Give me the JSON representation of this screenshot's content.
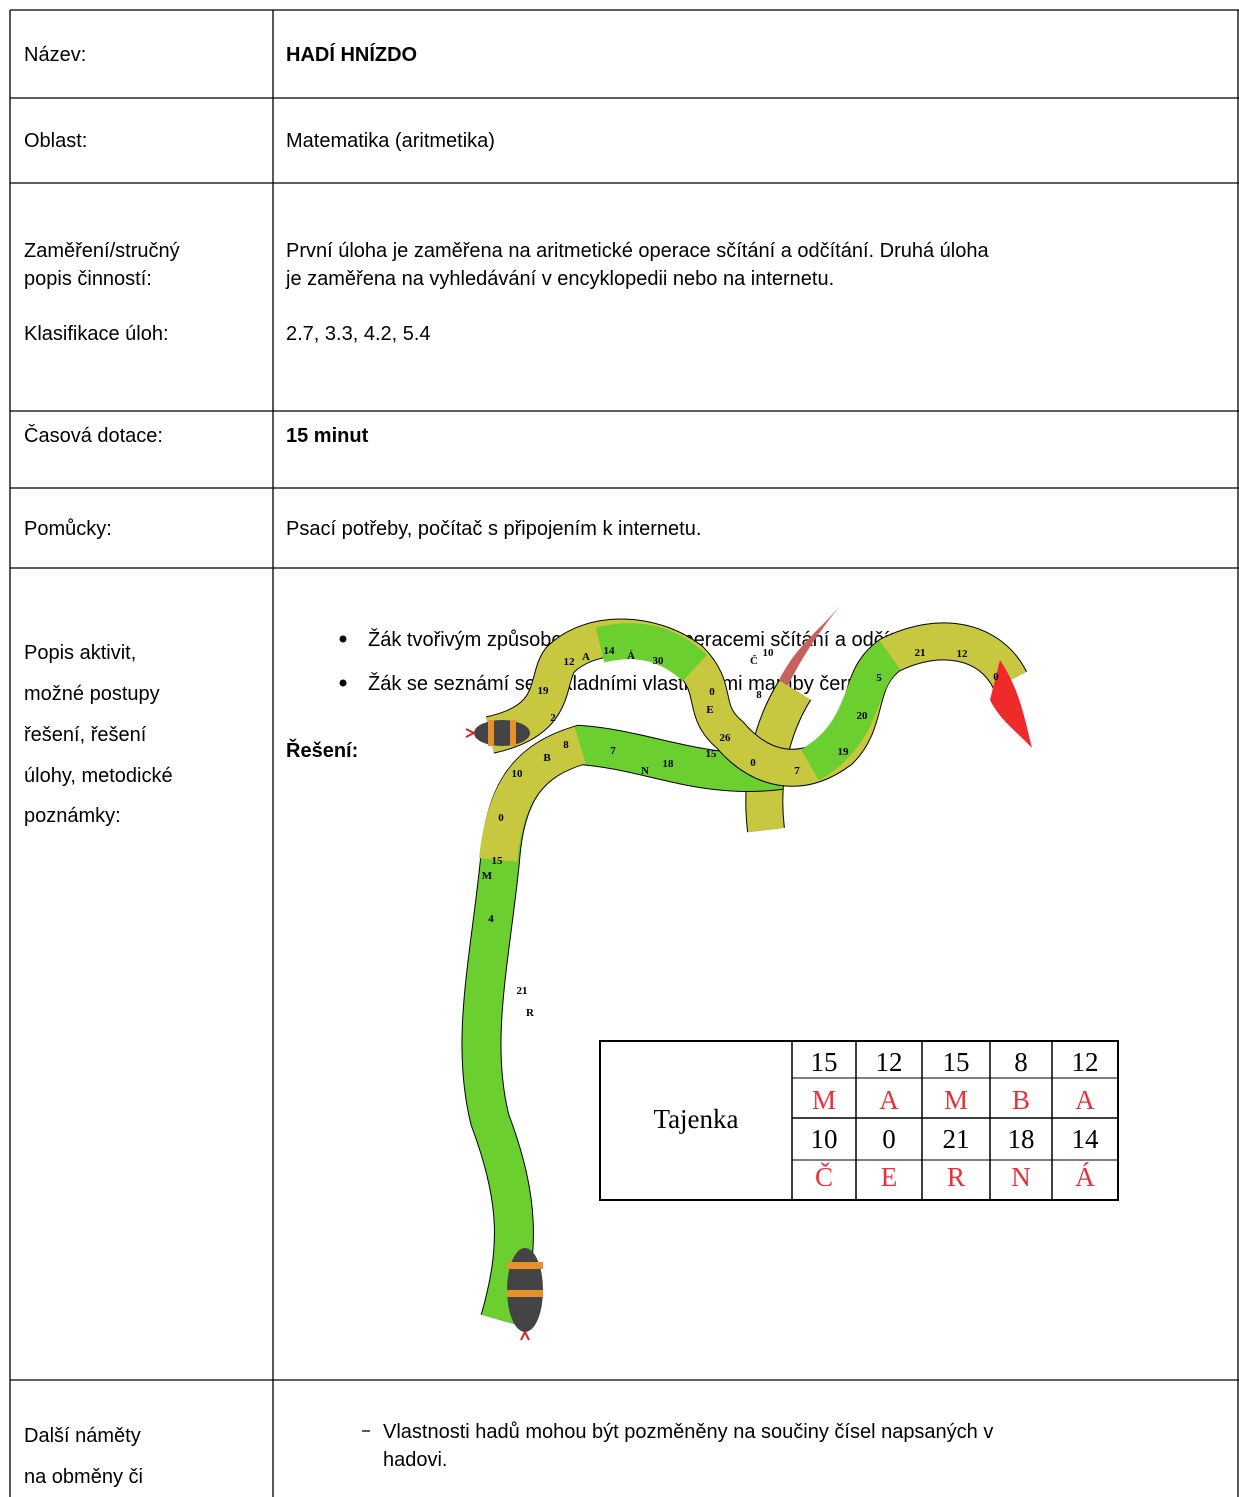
{
  "table": {
    "rows": [
      {
        "label": "Název:",
        "value": "HADÍ HNÍZDO"
      },
      {
        "label": "Oblast:",
        "value": "Matematika (aritmetika)"
      },
      {
        "label_lines": [
          "Zaměření/stručný",
          "popis činností:"
        ],
        "text_lines": [
          "První úloha je zaměřena na aritmetické operace sčítání a odčítání. Druhá úloha",
          "je zaměřena na vyhledávání v encyklopedii nebo na internetu."
        ],
        "label2": "Klasifikace úloh:",
        "value2": "2.7, 3.3, 4.2, 5.4"
      },
      {
        "label": "Časová dotace:",
        "value": "15 minut"
      },
      {
        "label": "Pomůcky:",
        "value": "Psací potřeby, počítač s připojením k internetu."
      },
      {
        "label_lines": [
          "Popis aktivit,",
          "možné postupy",
          "řešení, řešení",
          "úlohy, metodické",
          "poznámky:"
        ],
        "bullets": [
          "Žák tvořivým způsobem pracuje s operacemi sčítání a odčítání.",
          "Žák se seznámí se základními vlastnostmi mamby černé."
        ],
        "heading": "Řešení:"
      },
      {
        "label_lines": [
          "Další náměty",
          "na obměny či"
        ],
        "text_lines": [
          "Vlastnosti hadů mohou být pozměněny na součiny čísel napsaných v",
          "hadovi."
        ]
      }
    ]
  },
  "snake": {
    "labels": [
      2,
      19,
      12,
      "A",
      14,
      "Á",
      30,
      0,
      "E",
      8,
      "Č",
      10,
      26,
      0,
      7,
      19,
      20,
      5,
      21,
      12,
      0,
      8,
      "B",
      10,
      7,
      "N",
      18,
      15,
      0,
      15,
      "M",
      4,
      21,
      "R"
    ]
  },
  "tajenka": {
    "label": "Tajenka",
    "rows": [
      {
        "numbers": [
          15,
          12,
          15,
          8,
          12
        ],
        "letters": [
          "M",
          "A",
          "M",
          "B",
          "A"
        ]
      },
      {
        "numbers": [
          10,
          0,
          21,
          18,
          14
        ],
        "letters": [
          "Č",
          "E",
          "R",
          "N",
          "Á"
        ]
      }
    ]
  }
}
